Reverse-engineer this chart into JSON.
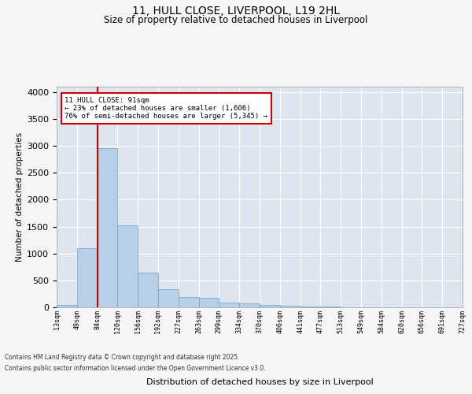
{
  "title": "11, HULL CLOSE, LIVERPOOL, L19 2HL",
  "subtitle": "Size of property relative to detached houses in Liverpool",
  "xlabel": "Distribution of detached houses by size in Liverpool",
  "ylabel": "Number of detached properties",
  "bar_values": [
    50,
    1100,
    2960,
    1530,
    650,
    330,
    185,
    175,
    90,
    70,
    50,
    30,
    20,
    10,
    5,
    5,
    5,
    3,
    2,
    2
  ],
  "categories": [
    "13sqm",
    "49sqm",
    "84sqm",
    "120sqm",
    "156sqm",
    "192sqm",
    "227sqm",
    "263sqm",
    "299sqm",
    "334sqm",
    "370sqm",
    "406sqm",
    "441sqm",
    "477sqm",
    "513sqm",
    "549sqm",
    "584sqm",
    "620sqm",
    "656sqm",
    "691sqm",
    "727sqm"
  ],
  "bar_color": "#b8cfe8",
  "bar_edge_color": "#6e9dc8",
  "background_color": "#dde6f0",
  "grid_color": "#ffffff",
  "vline_color": "#cc0000",
  "annotation_text": "11 HULL CLOSE: 91sqm\n← 23% of detached houses are smaller (1,606)\n76% of semi-detached houses are larger (5,345) →",
  "annotation_box_color": "#ffffff",
  "annotation_box_edge_color": "#cc0000",
  "ylim": [
    0,
    4100
  ],
  "yticks": [
    0,
    500,
    1000,
    1500,
    2000,
    2500,
    3000,
    3500,
    4000
  ],
  "footer_line1": "Contains HM Land Registry data © Crown copyright and database right 2025.",
  "footer_line2": "Contains public sector information licensed under the Open Government Licence v3.0."
}
